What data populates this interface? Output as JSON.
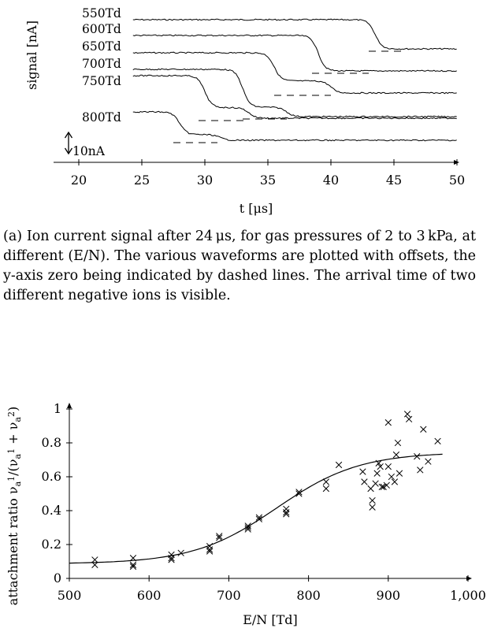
{
  "figure_a": {
    "caption": "(a) Ion current signal after 24 μs, for gas pressures of 2 to 3 kPa, at different (E/N). The various waveforms are plotted with offsets, the y-axis zero being indicated by dashed lines. The arrival time of two different negative ions is visible.",
    "chart_data": {
      "type": "line",
      "xlabel": "t [μs]",
      "ylabel": "signal [nA]",
      "xlim": [
        18,
        50
      ],
      "x_ticks": [
        20,
        25,
        30,
        35,
        40,
        45,
        50
      ],
      "scale_bar_label": "10nA",
      "series": [
        {
          "name": "550Td",
          "start_t": 24.3,
          "steps": [
            [
              43.5,
              1.0
            ]
          ],
          "zero_line_t": [
            43.0,
            46.0
          ],
          "amplitude_nA": 15
        },
        {
          "name": "600Td",
          "start_t": 24.3,
          "steps": [
            [
              39.0,
              1.0
            ]
          ],
          "zero_line_t": [
            38.5,
            43.0
          ],
          "amplitude_nA": 16
        },
        {
          "name": "650Td",
          "start_t": 24.3,
          "steps": [
            [
              35.5,
              0.7
            ],
            [
              40.0,
              0.3
            ]
          ],
          "zero_line_t": [
            35.5,
            40.0
          ],
          "amplitude_nA": 18
        },
        {
          "name": "700Td",
          "start_t": 24.3,
          "steps": [
            [
              33.0,
              0.8
            ],
            [
              36.5,
              0.2
            ]
          ],
          "zero_line_t": [
            33.0,
            36.5
          ],
          "amplitude_nA": 18
        },
        {
          "name": "750Td",
          "start_t": 24.3,
          "steps": [
            [
              30.0,
              0.75
            ],
            [
              33.5,
              0.25
            ]
          ],
          "zero_line_t": [
            29.5,
            33.5
          ],
          "amplitude_nA": 28
        },
        {
          "name": "800Td",
          "start_t": 24.3,
          "steps": [
            [
              28.0,
              0.8
            ],
            [
              31.2,
              0.2
            ]
          ],
          "zero_line_t": [
            27.5,
            31.0
          ],
          "amplitude_nA": 18
        }
      ]
    }
  },
  "figure_b": {
    "chart_data": {
      "type": "scatter",
      "xlabel": "E/N [Td]",
      "ylabel": "attachment ratio ν_a1/(ν_a1 + ν_a2)",
      "ylabel_parts": [
        "attachment ratio ν",
        "a",
        "1",
        "/(ν",
        "a",
        "1",
        " + ν",
        "a",
        "2",
        ")"
      ],
      "xlim": [
        500,
        1000
      ],
      "ylim": [
        0,
        1
      ],
      "x_ticks": [
        500,
        600,
        700,
        800,
        900,
        1000
      ],
      "x_tick_labels": [
        "500",
        "600",
        "700",
        "800",
        "900",
        "1,000"
      ],
      "y_ticks": [
        0,
        0.2,
        0.4,
        0.6,
        0.8,
        1
      ],
      "y_tick_labels": [
        "0",
        "0.2",
        "0.4",
        "0.6",
        "0.8",
        "1"
      ],
      "points": [
        [
          532,
          0.11
        ],
        [
          532,
          0.08
        ],
        [
          580,
          0.12
        ],
        [
          580,
          0.08
        ],
        [
          580,
          0.07
        ],
        [
          628,
          0.14
        ],
        [
          628,
          0.12
        ],
        [
          628,
          0.11
        ],
        [
          640,
          0.15
        ],
        [
          676,
          0.19
        ],
        [
          676,
          0.17
        ],
        [
          676,
          0.16
        ],
        [
          688,
          0.24
        ],
        [
          688,
          0.25
        ],
        [
          724,
          0.31
        ],
        [
          724,
          0.3
        ],
        [
          724,
          0.29
        ],
        [
          738,
          0.36
        ],
        [
          738,
          0.35
        ],
        [
          772,
          0.41
        ],
        [
          772,
          0.39
        ],
        [
          772,
          0.38
        ],
        [
          788,
          0.51
        ],
        [
          788,
          0.5
        ],
        [
          822,
          0.57
        ],
        [
          822,
          0.53
        ],
        [
          838,
          0.67
        ],
        [
          868,
          0.63
        ],
        [
          870,
          0.57
        ],
        [
          878,
          0.53
        ],
        [
          880,
          0.46
        ],
        [
          880,
          0.42
        ],
        [
          884,
          0.56
        ],
        [
          886,
          0.62
        ],
        [
          888,
          0.68
        ],
        [
          890,
          0.66
        ],
        [
          892,
          0.54
        ],
        [
          894,
          0.54
        ],
        [
          898,
          0.55
        ],
        [
          900,
          0.66
        ],
        [
          900,
          0.92
        ],
        [
          904,
          0.6
        ],
        [
          908,
          0.57
        ],
        [
          910,
          0.73
        ],
        [
          912,
          0.8
        ],
        [
          914,
          0.62
        ],
        [
          924,
          0.97
        ],
        [
          926,
          0.94
        ],
        [
          936,
          0.72
        ],
        [
          940,
          0.64
        ],
        [
          944,
          0.88
        ],
        [
          950,
          0.69
        ],
        [
          962,
          0.81
        ]
      ],
      "fit_curve": {
        "lower": 0.086,
        "upper": 0.745,
        "center": 760,
        "width": 52
      }
    }
  }
}
